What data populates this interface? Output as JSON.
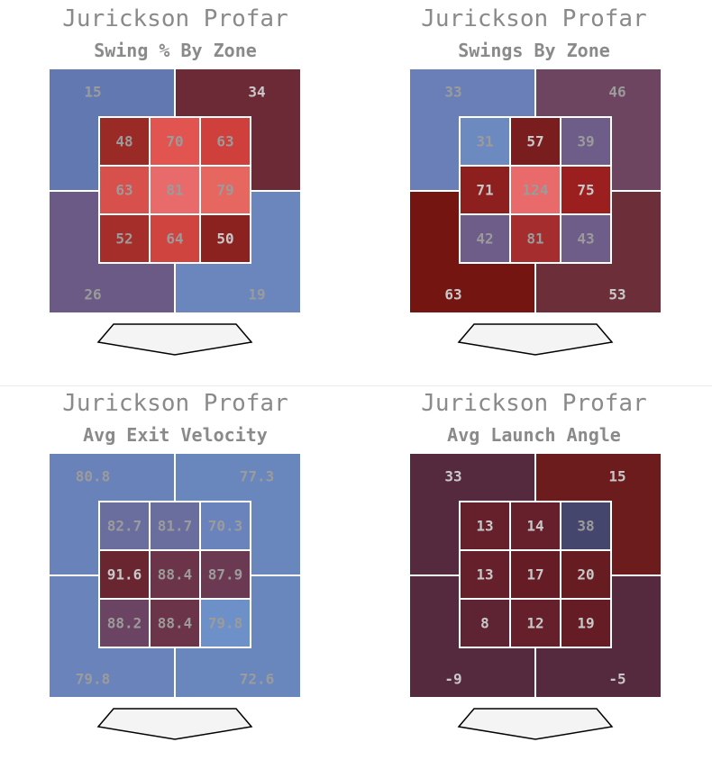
{
  "colors": {
    "blue": "#6a87bd",
    "red_bright": "#e86a6a",
    "dark_red": "#741512",
    "label_light": "#9b9b9b",
    "label_dark": "#c8c8c8"
  },
  "chart_data": [
    {
      "type": "heatmap",
      "title": "Jurickson Profar",
      "subtitle": "Swing % By Zone",
      "inner": [
        [
          "48",
          "70",
          "63"
        ],
        [
          "63",
          "81",
          "79"
        ],
        [
          "52",
          "64",
          "50"
        ]
      ],
      "inner_colors": [
        [
          "#9a2a26",
          "#e25450",
          "#cf3f3b"
        ],
        [
          "#d8504c",
          "#e86a6a",
          "#e66660"
        ],
        [
          "#a62e2a",
          "#d04440",
          "#8b2220"
        ]
      ],
      "outer": {
        "tl": "15",
        "tr": "34",
        "bl": "26",
        "br": "19"
      },
      "outer_colors": {
        "tl": "#6178b0",
        "tr": "#6c2a37",
        "bl": "#6a5a85",
        "br": "#6a86bd"
      }
    },
    {
      "type": "heatmap",
      "title": "Jurickson Profar",
      "subtitle": "Swings By Zone",
      "inner": [
        [
          "31",
          "57",
          "39"
        ],
        [
          "71",
          "124",
          "75"
        ],
        [
          "42",
          "81",
          "43"
        ]
      ],
      "inner_colors": [
        [
          "#6c8ac0",
          "#7a1d1e",
          "#6e5d88"
        ],
        [
          "#8e1f1f",
          "#e86a6a",
          "#9c1f1f"
        ],
        [
          "#6e5d88",
          "#a62d2d",
          "#6e5d88"
        ]
      ],
      "outer": {
        "tl": "33",
        "tr": "46",
        "bl": "63",
        "br": "53"
      },
      "outer_colors": {
        "tl": "#6a7fb7",
        "tr": "#6e4560",
        "bl": "#741512",
        "br": "#6c2f3a"
      }
    },
    {
      "type": "heatmap",
      "title": "Jurickson Profar",
      "subtitle": "Avg Exit Velocity",
      "inner": [
        [
          "82.7",
          "81.7",
          "70.3"
        ],
        [
          "91.6",
          "88.4",
          "87.9"
        ],
        [
          "88.2",
          "88.4",
          "79.8"
        ]
      ],
      "inner_colors": [
        [
          "#6a6e9e",
          "#6a6e9e",
          "#6a83bc"
        ],
        [
          "#6a2630",
          "#6b3448",
          "#6b3a52"
        ],
        [
          "#6b4463",
          "#6b3448",
          "#6e90c8"
        ]
      ],
      "outer": {
        "tl": "80.8",
        "tr": "77.3",
        "bl": "79.8",
        "br": "72.6"
      },
      "outer_colors": {
        "tl": "#6a82ba",
        "tr": "#6a87bd",
        "bl": "#6a84bb",
        "br": "#6a87bd"
      }
    },
    {
      "type": "heatmap",
      "title": "Jurickson Profar",
      "subtitle": "Avg Launch Angle",
      "inner": [
        [
          "13",
          "14",
          "38"
        ],
        [
          "13",
          "17",
          "20"
        ],
        [
          "8",
          "12",
          "19"
        ]
      ],
      "inner_colors": [
        [
          "#66202c",
          "#66202c",
          "#44466e"
        ],
        [
          "#66202c",
          "#661c24",
          "#661c20"
        ],
        [
          "#5f2434",
          "#66202c",
          "#661c24"
        ]
      ],
      "outer": {
        "tl": "33",
        "tr": "15",
        "bl": "-9",
        "br": "-5"
      },
      "outer_colors": {
        "tl": "#552a3e",
        "tr": "#6c1c1c",
        "bl": "#552a3e",
        "br": "#552a3e"
      }
    }
  ]
}
